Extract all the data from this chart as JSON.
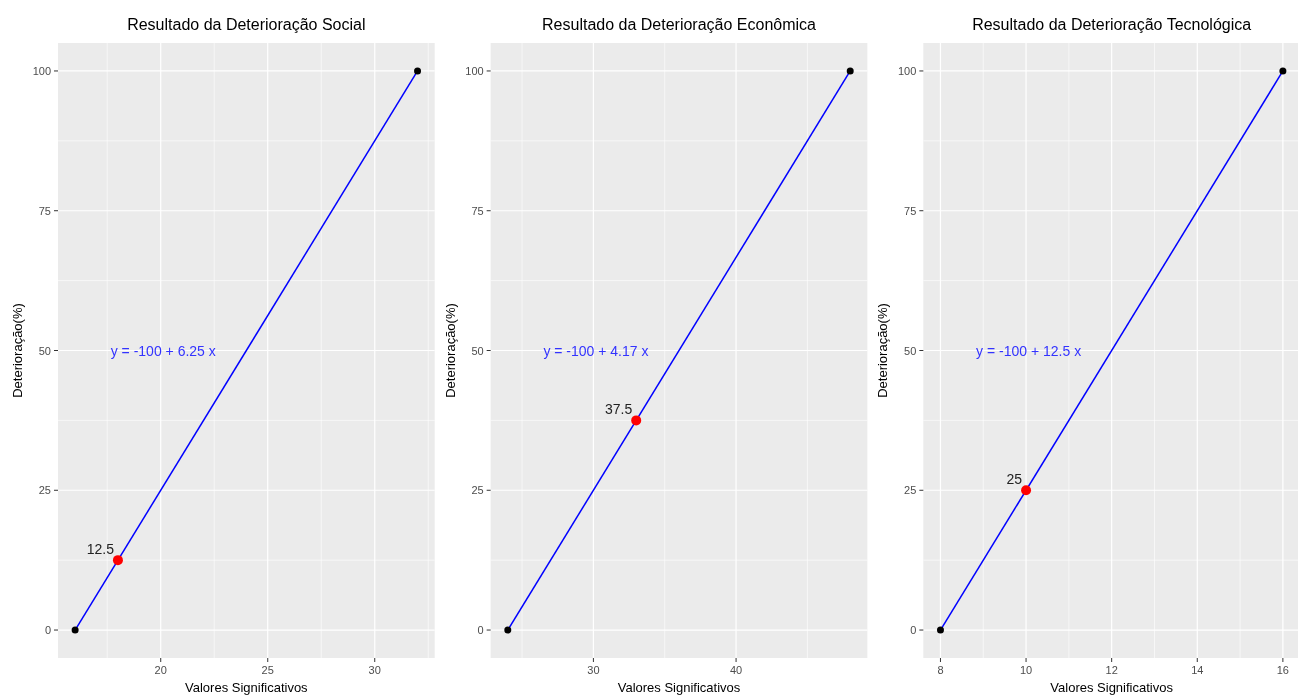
{
  "chart_data": [
    {
      "type": "line",
      "title": "Resultado da Deterioração Social",
      "xlabel": "Valores Significativos",
      "ylabel": "Deterioração(%)",
      "xlim": [
        15.2,
        32.8
      ],
      "xticks": [
        20,
        25,
        30
      ],
      "ylim": [
        -5,
        105
      ],
      "yticks": [
        0,
        25,
        50,
        75,
        100
      ],
      "grid": true,
      "annotations": [
        "y = -100 + 6.25 x"
      ],
      "series": [
        {
          "type": "line",
          "color": "#0000ff",
          "x": [
            16,
            32
          ],
          "values": [
            0,
            100
          ]
        },
        {
          "type": "scatter",
          "color": "#000000",
          "x": [
            16,
            32
          ],
          "values": [
            0,
            100
          ]
        },
        {
          "type": "scatter",
          "color": "#ff0000",
          "x": [
            18
          ],
          "values": [
            12.5
          ],
          "value_labels": [
            "12.5"
          ]
        }
      ]
    },
    {
      "type": "line",
      "title": "Resultado da Deterioração Econômica",
      "xlabel": "Valores Significativos",
      "ylabel": "Deterioração(%)",
      "xlim": [
        22.8,
        49.2
      ],
      "xticks": [
        30,
        40
      ],
      "ylim": [
        -5,
        105
      ],
      "yticks": [
        0,
        25,
        50,
        75,
        100
      ],
      "grid": true,
      "annotations": [
        "y = -100 + 4.17 x"
      ],
      "series": [
        {
          "type": "line",
          "color": "#0000ff",
          "x": [
            24,
            48
          ],
          "values": [
            0,
            100
          ]
        },
        {
          "type": "scatter",
          "color": "#000000",
          "x": [
            24,
            48
          ],
          "values": [
            0,
            100
          ]
        },
        {
          "type": "scatter",
          "color": "#ff0000",
          "x": [
            33
          ],
          "values": [
            37.5
          ],
          "value_labels": [
            "37.5"
          ]
        }
      ]
    },
    {
      "type": "line",
      "title": "Resultado da Deterioração Tecnológica",
      "xlabel": "Valores Significativos",
      "ylabel": "Deterioração(%)",
      "xlim": [
        7.6,
        16.4
      ],
      "xticks": [
        8,
        10,
        12,
        14,
        16
      ],
      "ylim": [
        -5,
        105
      ],
      "yticks": [
        0,
        25,
        50,
        75,
        100
      ],
      "grid": true,
      "annotations": [
        "y = -100 + 12.5 x"
      ],
      "series": [
        {
          "type": "line",
          "color": "#0000ff",
          "x": [
            8,
            16
          ],
          "values": [
            0,
            100
          ]
        },
        {
          "type": "scatter",
          "color": "#000000",
          "x": [
            8,
            16
          ],
          "values": [
            0,
            100
          ]
        },
        {
          "type": "scatter",
          "color": "#ff0000",
          "x": [
            10
          ],
          "values": [
            25
          ],
          "value_labels": [
            "25"
          ]
        }
      ]
    }
  ]
}
